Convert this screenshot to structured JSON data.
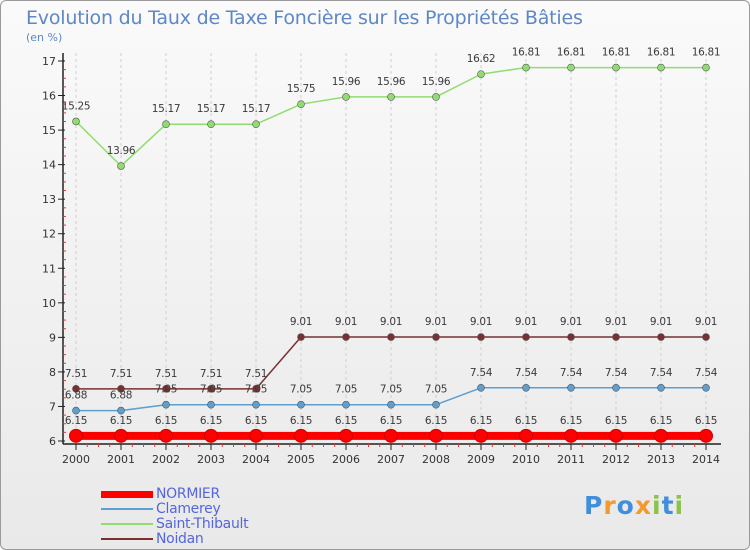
{
  "chart_data": {
    "type": "line",
    "title": "Evolution du Taux de Taxe Foncière sur les Propriétés Bâties",
    "ylabel": "(en %)",
    "xlabel": "",
    "ylim": [
      6,
      17
    ],
    "yticks": [
      "6",
      "7",
      "8",
      "9",
      "10",
      "11",
      "12",
      "13",
      "14",
      "15",
      "16",
      "17"
    ],
    "categories": [
      "2000",
      "2001",
      "2002",
      "2003",
      "2004",
      "2005",
      "2006",
      "2007",
      "2008",
      "2009",
      "2010",
      "2011",
      "2012",
      "2013",
      "2014"
    ],
    "series": [
      {
        "name": "NORMIER",
        "color": "#ff0000",
        "values": [
          6.15,
          6.15,
          6.15,
          6.15,
          6.15,
          6.15,
          6.15,
          6.15,
          6.15,
          6.15,
          6.15,
          6.15,
          6.15,
          6.15,
          6.15
        ],
        "labels": [
          "6.15",
          "6.15",
          "6.15",
          "6.15",
          "6.15",
          "6.15",
          "6.15",
          "6.15",
          "6.15",
          "6.15",
          "6.15",
          "6.15",
          "6.15",
          "6.15",
          "6.15"
        ]
      },
      {
        "name": "Clamerey",
        "color": "#5f9fd0",
        "values": [
          6.88,
          6.88,
          7.05,
          7.05,
          7.05,
          7.05,
          7.05,
          7.05,
          7.05,
          7.54,
          7.54,
          7.54,
          7.54,
          7.54,
          7.54
        ],
        "labels": [
          "6.88",
          "6.88",
          "7.05",
          "7.05",
          "7.05",
          "7.05",
          "7.05",
          "7.05",
          "7.05",
          "7.54",
          "7.54",
          "7.54",
          "7.54",
          "7.54",
          "7.54"
        ]
      },
      {
        "name": "Saint-Thibault",
        "color": "#90dc70",
        "values": [
          15.25,
          13.96,
          15.17,
          15.17,
          15.17,
          15.75,
          15.96,
          15.96,
          15.96,
          16.62,
          16.81,
          16.81,
          16.81,
          16.81,
          16.81
        ],
        "labels": [
          "15.25",
          "13.96",
          "15.17",
          "15.17",
          "15.17",
          "15.75",
          "15.96",
          "15.96",
          "15.96",
          "16.62",
          "16.81",
          "16.81",
          "16.81",
          "16.81",
          "16.81"
        ]
      },
      {
        "name": "Noidan",
        "color": "#7a3030",
        "values": [
          7.51,
          7.51,
          7.51,
          7.51,
          7.51,
          9.01,
          9.01,
          9.01,
          9.01,
          9.01,
          9.01,
          9.01,
          9.01,
          9.01,
          9.01
        ],
        "labels": [
          "7.51",
          "7.51",
          "7.51",
          "7.51",
          "7.51",
          "9.01",
          "9.01",
          "9.01",
          "9.01",
          "9.01",
          "9.01",
          "9.01",
          "9.01",
          "9.01",
          "9.01"
        ]
      }
    ]
  },
  "logo": {
    "letters": [
      "P",
      "r",
      "o",
      "x",
      "i",
      "t",
      "i"
    ],
    "colors": [
      "#3f8fdc",
      "#f29a2e",
      "#3f8fdc",
      "#f29a2e",
      "#8bc34a",
      "#3f8fdc",
      "#8bc34a"
    ]
  }
}
